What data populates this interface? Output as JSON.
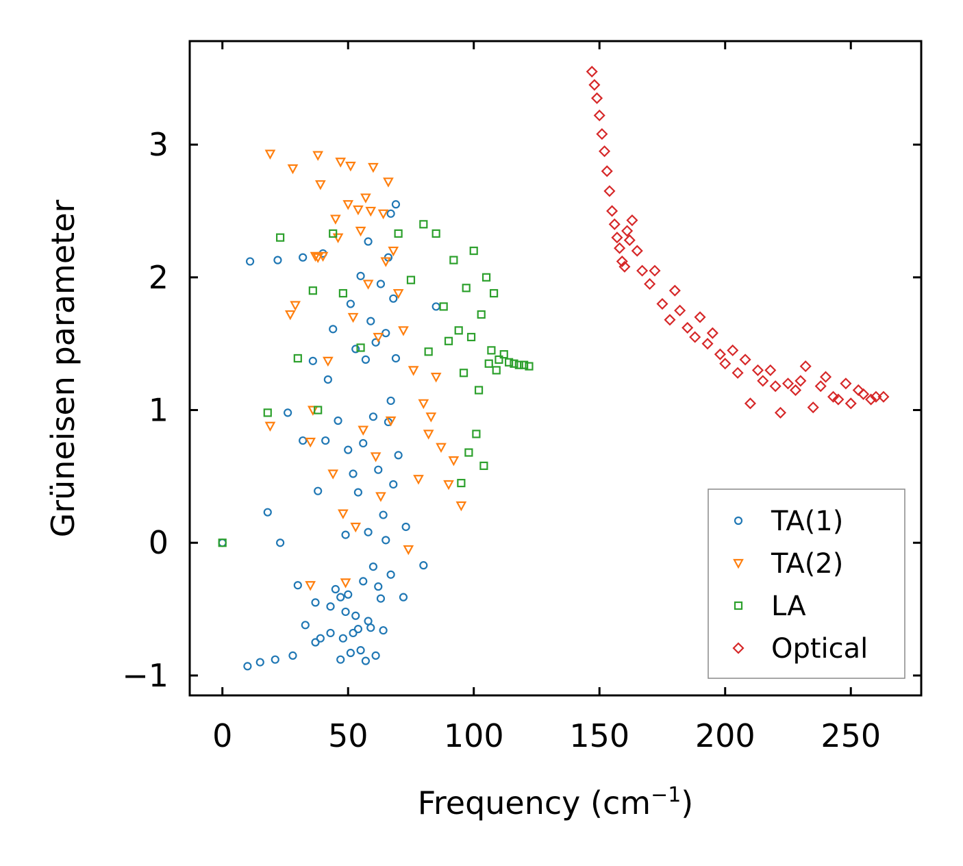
{
  "chart_data": {
    "type": "scatter",
    "title": "",
    "xlabel": "Frequency (cm",
    "xlabel_sup": "−1",
    "xlabel_close": ")",
    "ylabel": "Grüneisen parameter",
    "xlim": [
      -13,
      278
    ],
    "ylim": [
      -1.15,
      3.78
    ],
    "xticks": [
      0,
      50,
      100,
      150,
      200,
      250
    ],
    "xtick_labels": [
      "0",
      "50",
      "100",
      "150",
      "200",
      "250"
    ],
    "yticks": [
      -1,
      0,
      1,
      2,
      3
    ],
    "ytick_labels": [
      "−1",
      "0",
      "1",
      "2",
      "3"
    ],
    "legend_position": "lower-right",
    "series": [
      {
        "name": "TA(1)",
        "marker": "circle",
        "color": "#1f77b4",
        "x": [
          0,
          10,
          11,
          15,
          18,
          21,
          22,
          23,
          26,
          28,
          30,
          32,
          32,
          33,
          36,
          37,
          37,
          38,
          39,
          40,
          41,
          42,
          43,
          43,
          44,
          45,
          46,
          47,
          47,
          48,
          49,
          49,
          50,
          50,
          51,
          51,
          52,
          52,
          53,
          53,
          54,
          54,
          55,
          55,
          56,
          56,
          57,
          57,
          58,
          58,
          58,
          59,
          59,
          60,
          60,
          61,
          61,
          62,
          62,
          63,
          63,
          64,
          64,
          65,
          65,
          66,
          66,
          67,
          67,
          67,
          68,
          68,
          69,
          69,
          70,
          72,
          73,
          80,
          85
        ],
        "y": [
          0,
          -0.93,
          2.12,
          -0.9,
          0.23,
          -0.88,
          2.13,
          0,
          0.98,
          -0.85,
          -0.32,
          2.15,
          0.77,
          -0.62,
          1.37,
          -0.75,
          -0.45,
          0.39,
          -0.72,
          2.18,
          0.77,
          1.23,
          -0.68,
          -0.48,
          1.61,
          -0.35,
          0.92,
          -0.41,
          -0.88,
          -0.72,
          0.06,
          -0.52,
          0.7,
          -0.39,
          1.8,
          -0.83,
          0.52,
          -0.68,
          1.46,
          -0.55,
          0.38,
          -0.65,
          2.01,
          -0.81,
          0.75,
          -0.29,
          1.38,
          -0.89,
          2.27,
          0.08,
          -0.59,
          1.67,
          -0.64,
          0.95,
          -0.18,
          1.51,
          -0.85,
          0.55,
          -0.33,
          1.95,
          -0.42,
          0.21,
          -0.66,
          1.58,
          0.02,
          2.15,
          0.91,
          2.48,
          1.07,
          -0.24,
          1.84,
          0.44,
          2.55,
          1.39,
          0.66,
          -0.41,
          0.12,
          -0.17,
          1.78
        ]
      },
      {
        "name": "TA(2)",
        "marker": "triangle-down",
        "color": "#ff7f0e",
        "x": [
          19,
          19,
          27,
          28,
          29,
          35,
          35,
          36,
          37,
          38,
          38,
          39,
          40,
          42,
          44,
          45,
          46,
          47,
          48,
          49,
          50,
          51,
          52,
          53,
          54,
          55,
          56,
          57,
          58,
          59,
          60,
          61,
          62,
          63,
          64,
          65,
          66,
          67,
          68,
          70,
          72,
          74,
          76,
          78,
          80,
          82,
          83,
          85,
          87,
          90,
          92,
          95
        ],
        "y": [
          2.93,
          0.88,
          1.72,
          2.82,
          1.79,
          -0.32,
          0.76,
          1.0,
          2.16,
          2.15,
          2.92,
          2.7,
          2.16,
          1.37,
          0.52,
          2.44,
          2.3,
          2.87,
          0.22,
          -0.3,
          2.55,
          2.84,
          1.7,
          0.12,
          2.51,
          2.35,
          0.85,
          2.6,
          1.95,
          2.5,
          2.83,
          0.65,
          1.55,
          0.35,
          2.48,
          2.12,
          2.72,
          0.92,
          2.2,
          1.88,
          1.6,
          -0.05,
          1.3,
          0.48,
          1.05,
          0.82,
          0.95,
          1.25,
          0.72,
          0.44,
          0.62,
          0.28
        ]
      },
      {
        "name": "LA",
        "marker": "square",
        "color": "#2ca02c",
        "x": [
          0,
          18,
          23,
          30,
          36,
          38,
          44,
          48,
          55,
          70,
          75,
          80,
          82,
          85,
          88,
          90,
          92,
          94,
          95,
          96,
          97,
          98,
          99,
          100,
          101,
          102,
          103,
          104,
          105,
          106,
          107,
          108,
          109,
          110,
          112,
          114,
          116,
          118,
          120,
          122
        ],
        "y": [
          0,
          0.98,
          2.3,
          1.39,
          1.9,
          1.0,
          2.33,
          1.88,
          1.47,
          2.33,
          1.98,
          2.4,
          1.44,
          2.33,
          1.78,
          1.52,
          2.13,
          1.6,
          0.45,
          1.28,
          1.92,
          0.68,
          1.55,
          2.2,
          0.82,
          1.15,
          1.72,
          0.58,
          2.0,
          1.35,
          1.45,
          1.88,
          1.3,
          1.38,
          1.42,
          1.36,
          1.35,
          1.34,
          1.34,
          1.33
        ]
      },
      {
        "name": "Optical",
        "marker": "diamond",
        "color": "#d62728",
        "x": [
          147,
          148,
          149,
          150,
          151,
          152,
          153,
          154,
          155,
          156,
          157,
          158,
          159,
          160,
          161,
          162,
          163,
          165,
          167,
          170,
          172,
          175,
          178,
          180,
          182,
          185,
          188,
          190,
          193,
          195,
          198,
          200,
          203,
          205,
          208,
          210,
          213,
          215,
          218,
          220,
          222,
          225,
          228,
          230,
          232,
          235,
          238,
          240,
          243,
          245,
          248,
          250,
          253,
          255,
          258,
          260,
          263
        ],
        "y": [
          3.55,
          3.45,
          3.35,
          3.22,
          3.08,
          2.95,
          2.8,
          2.65,
          2.5,
          2.4,
          2.3,
          2.22,
          2.12,
          2.08,
          2.35,
          2.28,
          2.43,
          2.2,
          2.05,
          1.95,
          2.05,
          1.8,
          1.68,
          1.9,
          1.75,
          1.62,
          1.55,
          1.7,
          1.5,
          1.58,
          1.42,
          1.35,
          1.45,
          1.28,
          1.38,
          1.05,
          1.3,
          1.22,
          1.3,
          1.18,
          0.98,
          1.2,
          1.15,
          1.22,
          1.33,
          1.02,
          1.18,
          1.25,
          1.1,
          1.08,
          1.2,
          1.05,
          1.15,
          1.12,
          1.08,
          1.1,
          1.1
        ]
      }
    ]
  }
}
